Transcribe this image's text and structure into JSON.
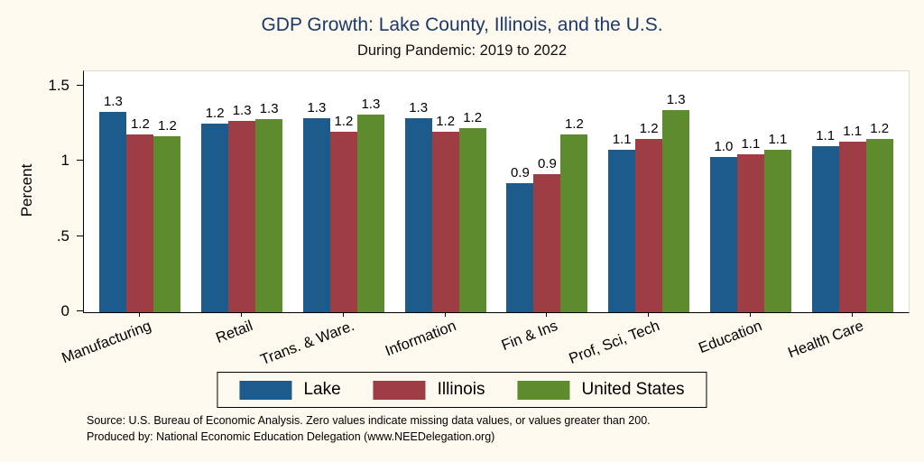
{
  "title": "GDP Growth: Lake County, Illinois, and the U.S.",
  "subtitle": "During Pandemic: 2019 to 2022",
  "ylabel": "Percent",
  "source_line1": "Source: U.S. Bureau of Economic Analysis. Zero values indicate missing data values, or values greater than 200.",
  "source_line2": "Produced by: National Economic Education Delegation (www.NEEDelegation.org)",
  "colors": {
    "background": "#fdf9ee",
    "plot_background": "#ffffff",
    "title": "#1b3a6b",
    "lake": "#1e5b8d",
    "illinois": "#9e3d44",
    "us": "#5e8b2e"
  },
  "chart_data": {
    "type": "bar",
    "title": "GDP Growth: Lake County, Illinois, and the U.S.",
    "subtitle": "During Pandemic: 2019 to 2022",
    "xlabel": "",
    "ylabel": "Percent",
    "categories": [
      "Manufacturing",
      "Retail",
      "Trans. & Ware.",
      "Information",
      "Fin & Ins",
      "Prof, Sci, Tech",
      "Education",
      "Health Care"
    ],
    "series": [
      {
        "name": "Lake",
        "color_key": "lake",
        "values": [
          1.33,
          1.25,
          1.29,
          1.29,
          0.86,
          1.08,
          1.03,
          1.1
        ],
        "labels": [
          "1.3",
          "1.2",
          "1.3",
          "1.3",
          "0.9",
          "1.1",
          "1.0",
          "1.1"
        ]
      },
      {
        "name": "Illinois",
        "color_key": "illinois",
        "values": [
          1.18,
          1.27,
          1.2,
          1.2,
          0.92,
          1.15,
          1.05,
          1.13
        ],
        "labels": [
          "1.2",
          "1.3",
          "1.2",
          "1.2",
          "0.9",
          "1.2",
          "1.1",
          "1.1"
        ]
      },
      {
        "name": "United States",
        "color_key": "us",
        "values": [
          1.17,
          1.28,
          1.31,
          1.22,
          1.18,
          1.34,
          1.08,
          1.15
        ],
        "labels": [
          "1.2",
          "1.3",
          "1.3",
          "1.2",
          "1.2",
          "1.3",
          "1.1",
          "1.2"
        ]
      }
    ],
    "yticks": [
      "0",
      ".5",
      "1",
      "1.5"
    ],
    "ytick_values": [
      0,
      0.5,
      1,
      1.5
    ],
    "ylim": [
      0,
      1.6
    ],
    "grid": false,
    "legend_position": "bottom",
    "legend_entries": [
      "Lake",
      "Illinois",
      "United States"
    ]
  }
}
